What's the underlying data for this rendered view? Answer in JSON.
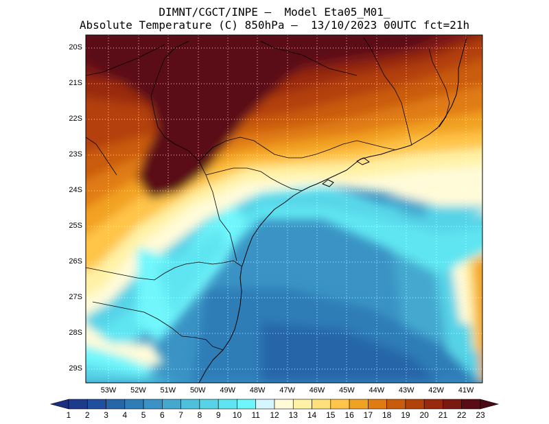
{
  "title": {
    "line1": "DIMNT/CGCT/INPE –  Model Eta05_M01_",
    "line2": "Absolute Temperature (C) 850hPa –  13/10/2023 00UTC fct=21h"
  },
  "map": {
    "lat_labels": [
      "20S",
      "21S",
      "22S",
      "23S",
      "24S",
      "25S",
      "26S",
      "27S",
      "28S",
      "29S"
    ],
    "lon_labels": [
      "53W",
      "52W",
      "51W",
      "50W",
      "49W",
      "48W",
      "47W",
      "46W",
      "45W",
      "44W",
      "43W",
      "42W",
      "41W"
    ]
  },
  "colorbar": {
    "labels": [
      "1",
      "2",
      "3",
      "4",
      "5",
      "6",
      "7",
      "8",
      "9",
      "10",
      "11",
      "12",
      "13",
      "14",
      "15",
      "16",
      "17",
      "18",
      "19",
      "20",
      "21",
      "22",
      "23"
    ],
    "colors": [
      "#1c3b8a",
      "#1f4f9e",
      "#2566a8",
      "#2f7db7",
      "#3a93c4",
      "#45a9cf",
      "#4fc0dc",
      "#57d3e7",
      "#5fe5f1",
      "#6ff6fb",
      "#d6f6ff",
      "#fffbd9",
      "#fff2a6",
      "#ffe17a",
      "#ffc54a",
      "#f2a223",
      "#e07b12",
      "#c95b0c",
      "#b3410a",
      "#99290c",
      "#7a1812",
      "#5a0c16"
    ],
    "low_color": "#1a2f80",
    "high_color": "#4a0a14"
  }
}
